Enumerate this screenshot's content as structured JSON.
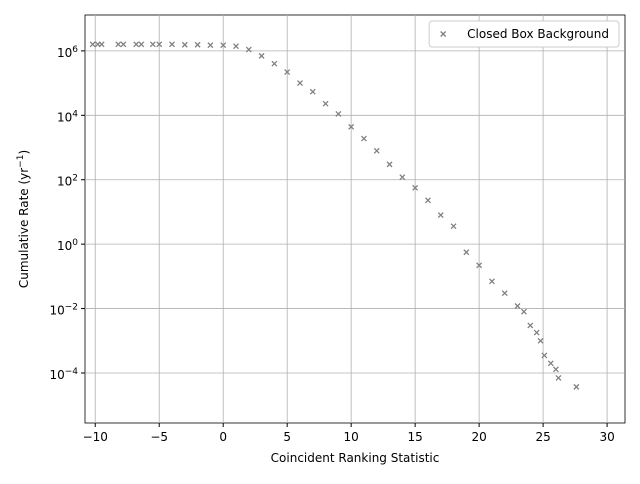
{
  "chart_data": {
    "type": "scatter",
    "xlabel": "Coincident Ranking Statistic",
    "ylabel": "Cumulative Rate (yr^−1)",
    "xlim": [
      -10.8,
      31.4
    ],
    "ylim": [
      2.8e-06,
      13000000.0
    ],
    "yscale": "log",
    "grid": true,
    "legend": "upper right",
    "xticks": [
      {
        "value": -10,
        "label": "−10"
      },
      {
        "value": -5,
        "label": "−5"
      },
      0,
      5,
      10,
      15,
      20,
      25,
      30
    ],
    "yticks": [
      {
        "value": 0.0001,
        "label": "10^−4"
      },
      {
        "value": 0.01,
        "label": "10^−2"
      },
      {
        "value": 1,
        "label": "10^0"
      },
      {
        "value": 100,
        "label": "10^2"
      },
      {
        "value": 10000,
        "label": "10^4"
      },
      {
        "value": 1000000,
        "label": "10^6"
      }
    ],
    "series": [
      {
        "name": "Closed Box Background",
        "color": "#808080",
        "x": [
          -10.2,
          -9.8,
          -9.5,
          -8.2,
          -7.8,
          -6.8,
          -6.4,
          -5.5,
          -5,
          -4,
          -3,
          -2,
          -1,
          0,
          1,
          2,
          3,
          4,
          5,
          6,
          7,
          8,
          9,
          10,
          11,
          12,
          13,
          14,
          15,
          16,
          17,
          18,
          19,
          20,
          21,
          22,
          23,
          23.5,
          24,
          24.5,
          24.8,
          25.1,
          25.6,
          26,
          26.2,
          27.6
        ],
        "values": [
          1600000.0,
          1600000.0,
          1600000.0,
          1600000.0,
          1600000.0,
          1600000.0,
          1600000.0,
          1600000.0,
          1600000.0,
          1600000.0,
          1550000.0,
          1550000.0,
          1500000.0,
          1500000.0,
          1400000.0,
          1100000.0,
          700000.0,
          400000.0,
          220000.0,
          100000.0,
          54000.0,
          23000.0,
          11000.0,
          4400.0,
          1900.0,
          790.0,
          300.0,
          120.0,
          56,
          23,
          8,
          3.6,
          0.56,
          0.22,
          0.07,
          0.03,
          0.012,
          0.008,
          0.003,
          0.0018,
          0.001,
          0.00035,
          0.0002,
          0.00013,
          7e-05,
          3.7e-05
        ]
      }
    ]
  }
}
